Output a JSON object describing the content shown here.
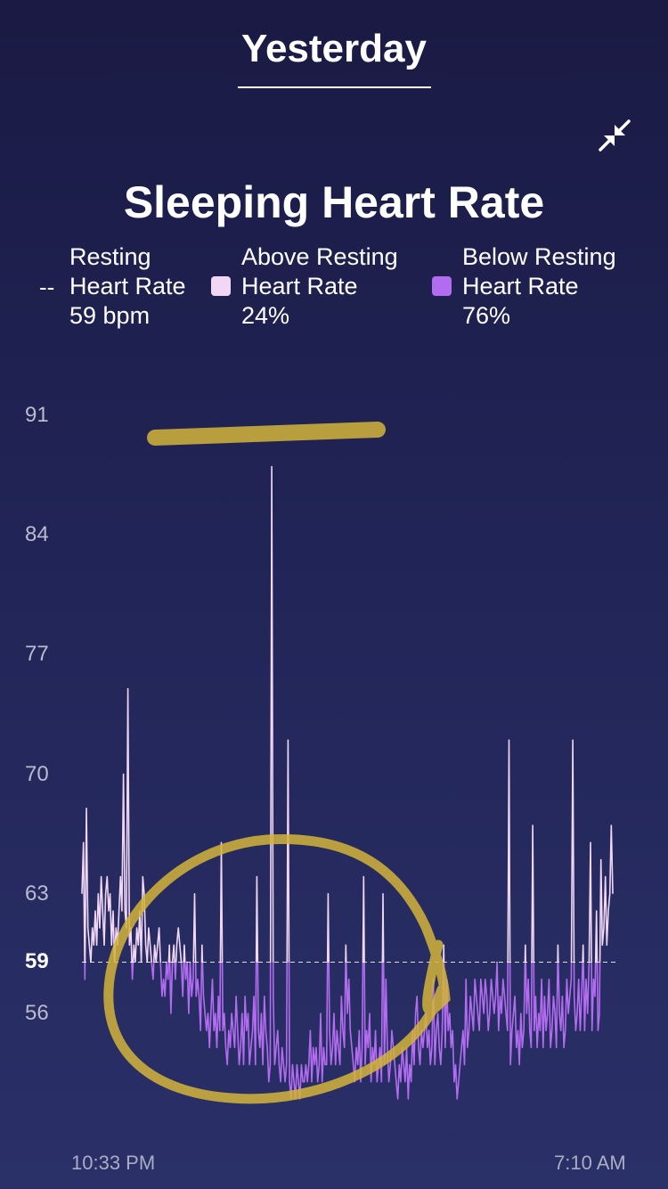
{
  "header": {
    "title": "Yesterday"
  },
  "collapse_icon": "collapse-arrows-icon",
  "title": "Sleeping Heart Rate",
  "legend": {
    "resting": {
      "marker": "--",
      "line1": "Resting",
      "line2": "Heart Rate",
      "value": "59 bpm"
    },
    "above": {
      "line1": "Above Resting",
      "line2": "Heart Rate",
      "value": "24%",
      "color": "#f2d6f5"
    },
    "below": {
      "line1": "Below Resting",
      "line2": "Heart Rate",
      "value": "76%",
      "color": "#b26cf0"
    }
  },
  "colors": {
    "above": "#f2d6f5",
    "below": "#b26cf0",
    "highlight": "#d4b43a"
  },
  "chart_data": {
    "type": "line",
    "ylabel": "",
    "xlabel": "",
    "y_ticks": [
      91,
      84,
      77,
      70,
      63,
      59,
      56
    ],
    "ylim": [
      52,
      91
    ],
    "resting_line": 59,
    "x_range_labels": [
      "10:33 PM",
      "7:10 AM"
    ],
    "series": [
      {
        "values": [
          63,
          66,
          58,
          68,
          61,
          60,
          59,
          61,
          60,
          62,
          60,
          63,
          61,
          64,
          62,
          60,
          63,
          64,
          62,
          63,
          60,
          62,
          59,
          61,
          60,
          62,
          64,
          62,
          70,
          62,
          61,
          75,
          60,
          61,
          58,
          60,
          59,
          61,
          60,
          62,
          59,
          64,
          63,
          60,
          59,
          61,
          60,
          59,
          58,
          60,
          59,
          60,
          61,
          59,
          57,
          58,
          57,
          59,
          58,
          60,
          56,
          59,
          60,
          58,
          60,
          61,
          60,
          59,
          57,
          60,
          58,
          59,
          56,
          59,
          57,
          58,
          63,
          57,
          58,
          57,
          55,
          60,
          57,
          56,
          55,
          56,
          54,
          56,
          58,
          55,
          56,
          54,
          57,
          55,
          66,
          55,
          56,
          54,
          53,
          55,
          54,
          56,
          55,
          54,
          57,
          55,
          53,
          54,
          56,
          53,
          57,
          55,
          56,
          53,
          54,
          55,
          57,
          53,
          64,
          55,
          54,
          56,
          53,
          57,
          55,
          54,
          52,
          53,
          88,
          57,
          53,
          54,
          55,
          53,
          52,
          54,
          53,
          52,
          53,
          72,
          52,
          51,
          53,
          52,
          51,
          53,
          52,
          51,
          53,
          52,
          52,
          53,
          52,
          53,
          55,
          52,
          54,
          53,
          54,
          52,
          53,
          56,
          52,
          54,
          53,
          53,
          63,
          55,
          53,
          54,
          56,
          53,
          55,
          54,
          53,
          57,
          55,
          54,
          60,
          56,
          58,
          55,
          54,
          53,
          52,
          54,
          53,
          55,
          52,
          54,
          64,
          53,
          55,
          54,
          56,
          52,
          54,
          53,
          55,
          52,
          53,
          54,
          52,
          63,
          53,
          58,
          54,
          52,
          53,
          55,
          54,
          53,
          52,
          51,
          53,
          52,
          54,
          53,
          52,
          54,
          51,
          53,
          52,
          55,
          53,
          56,
          57,
          54,
          53,
          55,
          54,
          55,
          56,
          54,
          55,
          53,
          54,
          58,
          53,
          55,
          56,
          54,
          53,
          55,
          60,
          54,
          58,
          55,
          56,
          54,
          55,
          52,
          53,
          51,
          52,
          53,
          54,
          55,
          53,
          58,
          54,
          55,
          57,
          56,
          55,
          58,
          57,
          56,
          55,
          58,
          57,
          56,
          58,
          57,
          55,
          56,
          58,
          57,
          56,
          57,
          59,
          55,
          57,
          56,
          58,
          57,
          56,
          55,
          72,
          53,
          55,
          56,
          57,
          54,
          55,
          53,
          56,
          54,
          55,
          60,
          56,
          58,
          55,
          54,
          67,
          55,
          57,
          54,
          56,
          55,
          58,
          54,
          57,
          55,
          56,
          58,
          54,
          55,
          57,
          56,
          54,
          60,
          56,
          55,
          57,
          54,
          55,
          58,
          56,
          57,
          58,
          72,
          57,
          55,
          56,
          58,
          55,
          57,
          60,
          55,
          58,
          56,
          59,
          66,
          55,
          58,
          57,
          62,
          55,
          56,
          65,
          60,
          61,
          64,
          60,
          62,
          63,
          67,
          63
        ]
      }
    ]
  }
}
